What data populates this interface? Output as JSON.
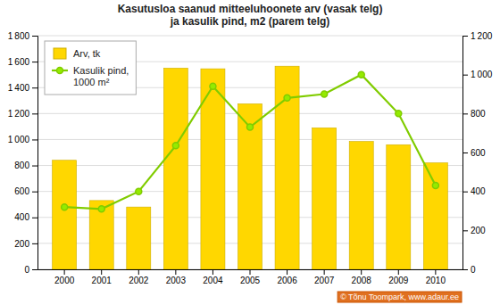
{
  "chart_data": {
    "type": "bar",
    "title": "Kasutusloa saanud mitteeluhoonete arv (vasak telg)\nja kasulik pind, m2 (parem telg)",
    "categories": [
      "2000",
      "2001",
      "2002",
      "2003",
      "2004",
      "2005",
      "2006",
      "2007",
      "2008",
      "2009",
      "2010"
    ],
    "series": [
      {
        "name": "Arv, tk",
        "type": "bar",
        "color": "#FFD700",
        "values": [
          840,
          530,
          480,
          1550,
          1545,
          1275,
          1565,
          1090,
          985,
          960,
          820
        ]
      },
      {
        "name": "Kasulik pind,\n1000 m²",
        "type": "line",
        "axis": "y2",
        "color": "#80CC00",
        "marker": "circle",
        "values": [
          320,
          310,
          400,
          635,
          940,
          730,
          880,
          900,
          1000,
          800,
          430
        ]
      }
    ],
    "ylim": [
      0,
      1800
    ],
    "yticks": [
      0,
      200,
      400,
      600,
      800,
      {
        "value": 1000,
        "label": "1 000"
      },
      {
        "value": 1200,
        "label": "1 200"
      },
      {
        "value": 1400,
        "label": "1 400"
      },
      {
        "value": 1600,
        "label": "1 600"
      },
      {
        "value": 1800,
        "label": "1 800"
      }
    ],
    "y2lim": [
      0,
      1200
    ],
    "y2ticks": [
      0,
      200,
      400,
      600,
      800,
      {
        "value": 1000,
        "label": "1 000"
      },
      {
        "value": 1200,
        "label": "1 200"
      }
    ],
    "grid": true,
    "legend": "upper left",
    "annotations": [
      "© Tõnu Toompark, www.adaur.ee"
    ]
  }
}
